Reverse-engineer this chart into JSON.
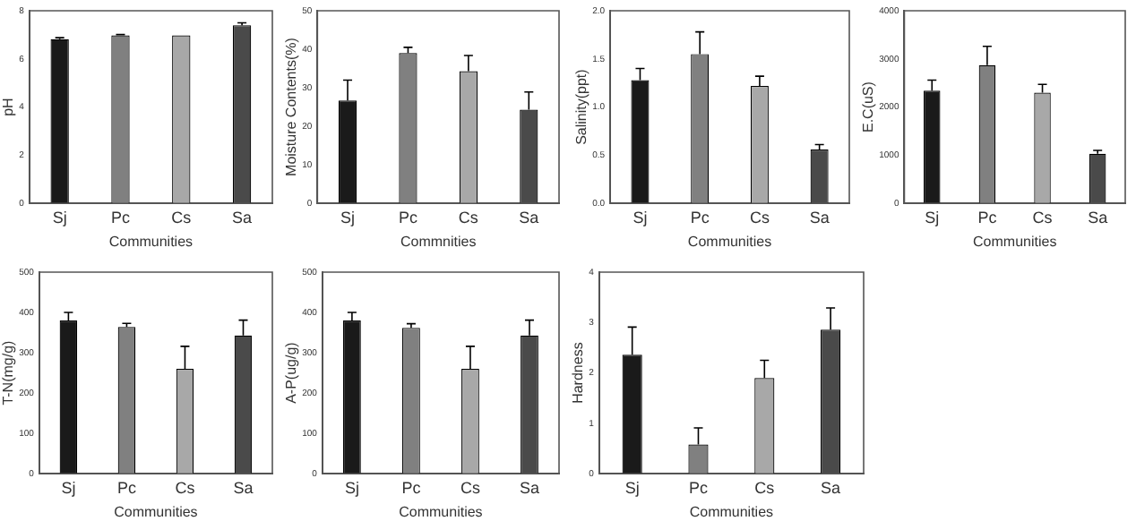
{
  "chart_data": [
    {
      "type": "bar",
      "ylabel": "pH",
      "xlabel": "Communities",
      "categories": [
        "Sj",
        "Pc",
        "Cs",
        "Sa"
      ],
      "values": [
        6.82,
        6.98,
        6.98,
        7.4
      ],
      "errors": [
        0.06,
        0.03,
        null,
        0.1
      ],
      "colors": [
        "#1a1a1a",
        "#808080",
        "#a8a8a8",
        "#4a4a4a"
      ],
      "ylim": [
        0,
        8
      ],
      "yticks": [
        0,
        2,
        4,
        6,
        8
      ],
      "grid": false,
      "legend": false
    },
    {
      "type": "bar",
      "ylabel": "Moisture Contents(%)",
      "xlabel": "Commnities",
      "categories": [
        "Sj",
        "Pc",
        "Cs",
        "Sa"
      ],
      "values": [
        26.7,
        39,
        34.3,
        24.3
      ],
      "errors": [
        5.3,
        1.5,
        4.1,
        4.6
      ],
      "colors": [
        "#1a1a1a",
        "#808080",
        "#a8a8a8",
        "#4a4a4a"
      ],
      "ylim": [
        0,
        50
      ],
      "yticks": [
        0,
        10,
        20,
        30,
        40,
        50
      ],
      "grid": false,
      "legend": false
    },
    {
      "type": "bar",
      "ylabel": "Salinity(ppt)",
      "xlabel": "Communities",
      "categories": [
        "Sj",
        "Pc",
        "Cs",
        "Sa"
      ],
      "values": [
        1.28,
        1.55,
        1.22,
        0.56
      ],
      "errors": [
        0.12,
        0.23,
        0.1,
        0.05
      ],
      "colors": [
        "#1a1a1a",
        "#808080",
        "#a8a8a8",
        "#4a4a4a"
      ],
      "ylim": [
        0,
        2
      ],
      "yticks": [
        {
          "value": 0,
          "label": "0.0"
        },
        0.5,
        {
          "value": 1,
          "label": "1.0"
        },
        1.5,
        {
          "value": 2,
          "label": "2.0"
        }
      ],
      "grid": false,
      "legend": false
    },
    {
      "type": "bar",
      "ylabel": "E.C(uS)",
      "xlabel": "Communities",
      "categories": [
        "Sj",
        "Pc",
        "Cs",
        "Sa"
      ],
      "values": [
        2340,
        2870,
        2300,
        1030
      ],
      "errors": [
        220,
        390,
        170,
        70
      ],
      "colors": [
        "#1a1a1a",
        "#808080",
        "#a8a8a8",
        "#4a4a4a"
      ],
      "ylim": [
        0,
        4000
      ],
      "yticks": [
        0,
        1000,
        2000,
        3000,
        4000
      ],
      "grid": false,
      "legend": false
    },
    {
      "type": "bar",
      "ylabel": "T-N(mg/g)",
      "xlabel": "Communities",
      "categories": [
        "Sj",
        "Pc",
        "Cs",
        "Sa"
      ],
      "values": [
        380,
        364,
        260,
        343
      ],
      "errors": [
        20,
        9,
        56,
        38
      ],
      "colors": [
        "#1a1a1a",
        "#808080",
        "#a8a8a8",
        "#4a4a4a"
      ],
      "ylim": [
        0,
        500
      ],
      "yticks": [
        0,
        100,
        200,
        300,
        400,
        500
      ],
      "grid": false,
      "legend": false
    },
    {
      "type": "bar",
      "ylabel": "A-P(ug/g)",
      "xlabel": "Communities",
      "categories": [
        "Sj",
        "Pc",
        "Cs",
        "Sa"
      ],
      "values": [
        380,
        362,
        260,
        343
      ],
      "errors": [
        20,
        10,
        56,
        38
      ],
      "colors": [
        "#1a1a1a",
        "#808080",
        "#a8a8a8",
        "#4a4a4a"
      ],
      "ylim": [
        0,
        500
      ],
      "yticks": [
        0,
        100,
        200,
        300,
        400,
        500
      ],
      "grid": false,
      "legend": false
    },
    {
      "type": "bar",
      "ylabel": "Hardness",
      "xlabel": "Communities",
      "categories": [
        "Sj",
        "Pc",
        "Cs",
        "Sa"
      ],
      "values": [
        2.36,
        0.58,
        1.9,
        2.86
      ],
      "errors": [
        0.55,
        0.33,
        0.35,
        0.43
      ],
      "colors": [
        "#1a1a1a",
        "#808080",
        "#a8a8a8",
        "#4a4a4a"
      ],
      "ylim": [
        0,
        4
      ],
      "yticks": [
        0,
        1,
        2,
        3,
        4
      ],
      "grid": false,
      "legend": false
    }
  ]
}
